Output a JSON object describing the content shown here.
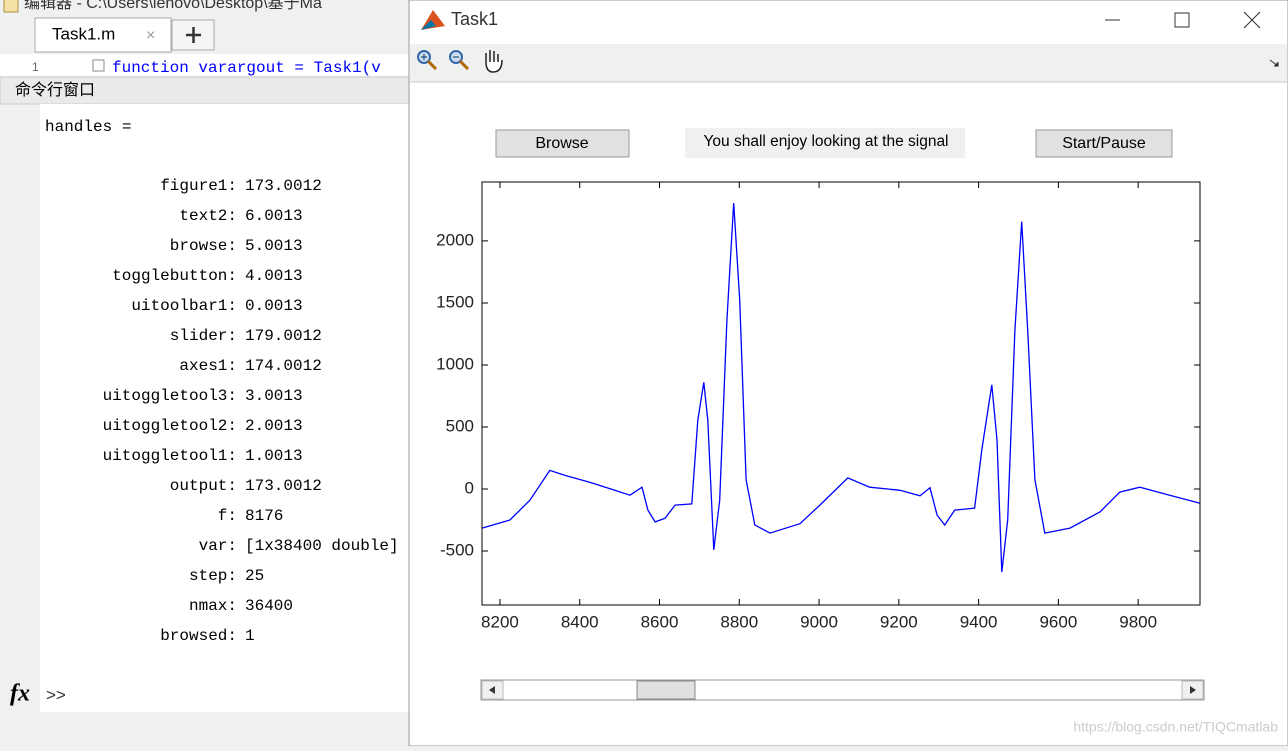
{
  "editor": {
    "title": "编辑器 - C:\\Users\\lenovo\\Desktop\\基于Ma",
    "tab": "Task1.m",
    "line_number": "1",
    "code": "function varargout = Task1(v"
  },
  "command_window": {
    "title": "命令行窗口",
    "header": "handles =",
    "fields": [
      {
        "name": "figure1:",
        "value": "173.0012"
      },
      {
        "name": "text2:",
        "value": "6.0013"
      },
      {
        "name": "browse:",
        "value": "5.0013"
      },
      {
        "name": "togglebutton:",
        "value": "4.0013"
      },
      {
        "name": "uitoolbar1:",
        "value": "0.0013"
      },
      {
        "name": "slider:",
        "value": "179.0012"
      },
      {
        "name": "axes1:",
        "value": "174.0012"
      },
      {
        "name": "uitoggletool3:",
        "value": "3.0013"
      },
      {
        "name": "uitoggletool2:",
        "value": "2.0013"
      },
      {
        "name": "uitoggletool1:",
        "value": "1.0013"
      },
      {
        "name": "output:",
        "value": "173.0012"
      },
      {
        "name": "f:",
        "value": "8176"
      },
      {
        "name": "var:",
        "value": "[1x38400 double]"
      },
      {
        "name": "step:",
        "value": "25"
      },
      {
        "name": "nmax:",
        "value": "36400"
      },
      {
        "name": "browsed:",
        "value": "1"
      }
    ],
    "prompt": ">>"
  },
  "figure": {
    "title": "Task1",
    "browse_button": "Browse",
    "message": "You shall enjoy looking at the signal",
    "start_button": "Start/Pause"
  },
  "watermark": "https://blog.csdn.net/TIQCmatlab",
  "chart_data": {
    "type": "line",
    "color": "#0000ff",
    "x": [
      8155,
      8225,
      8275,
      8325,
      8363,
      8425,
      8488,
      8526,
      8556,
      8571,
      8589,
      8614,
      8639,
      8681,
      8696,
      8711,
      8721,
      8736,
      8751,
      8769,
      8786,
      8801,
      8817,
      8839,
      8877,
      8952,
      9002,
      9072,
      9127,
      9203,
      9253,
      9278,
      9296,
      9315,
      9340,
      9390,
      9408,
      9433,
      9446,
      9458,
      9473,
      9491,
      9508,
      9523,
      9541,
      9566,
      9629,
      9704,
      9754,
      9804,
      9879,
      9955
    ],
    "values": [
      -315,
      -250,
      -90,
      150,
      110,
      55,
      -10,
      -50,
      15,
      -170,
      -265,
      -235,
      -130,
      -120,
      555,
      860,
      555,
      -490,
      -90,
      1360,
      2305,
      1525,
      75,
      -290,
      -355,
      -280,
      -130,
      90,
      15,
      -10,
      -55,
      10,
      -210,
      -290,
      -170,
      -155,
      315,
      840,
      395,
      -670,
      -250,
      1280,
      2155,
      1280,
      75,
      -355,
      -315,
      -185,
      -25,
      15,
      -50,
      -115
    ],
    "xlim": [
      8155,
      9955
    ],
    "ylim": [
      -935,
      2475
    ],
    "xticks": [
      8200,
      8400,
      8600,
      8800,
      9000,
      9200,
      9400,
      9600,
      9800
    ],
    "yticks": [
      -500,
      0,
      500,
      1000,
      1500,
      2000
    ]
  }
}
